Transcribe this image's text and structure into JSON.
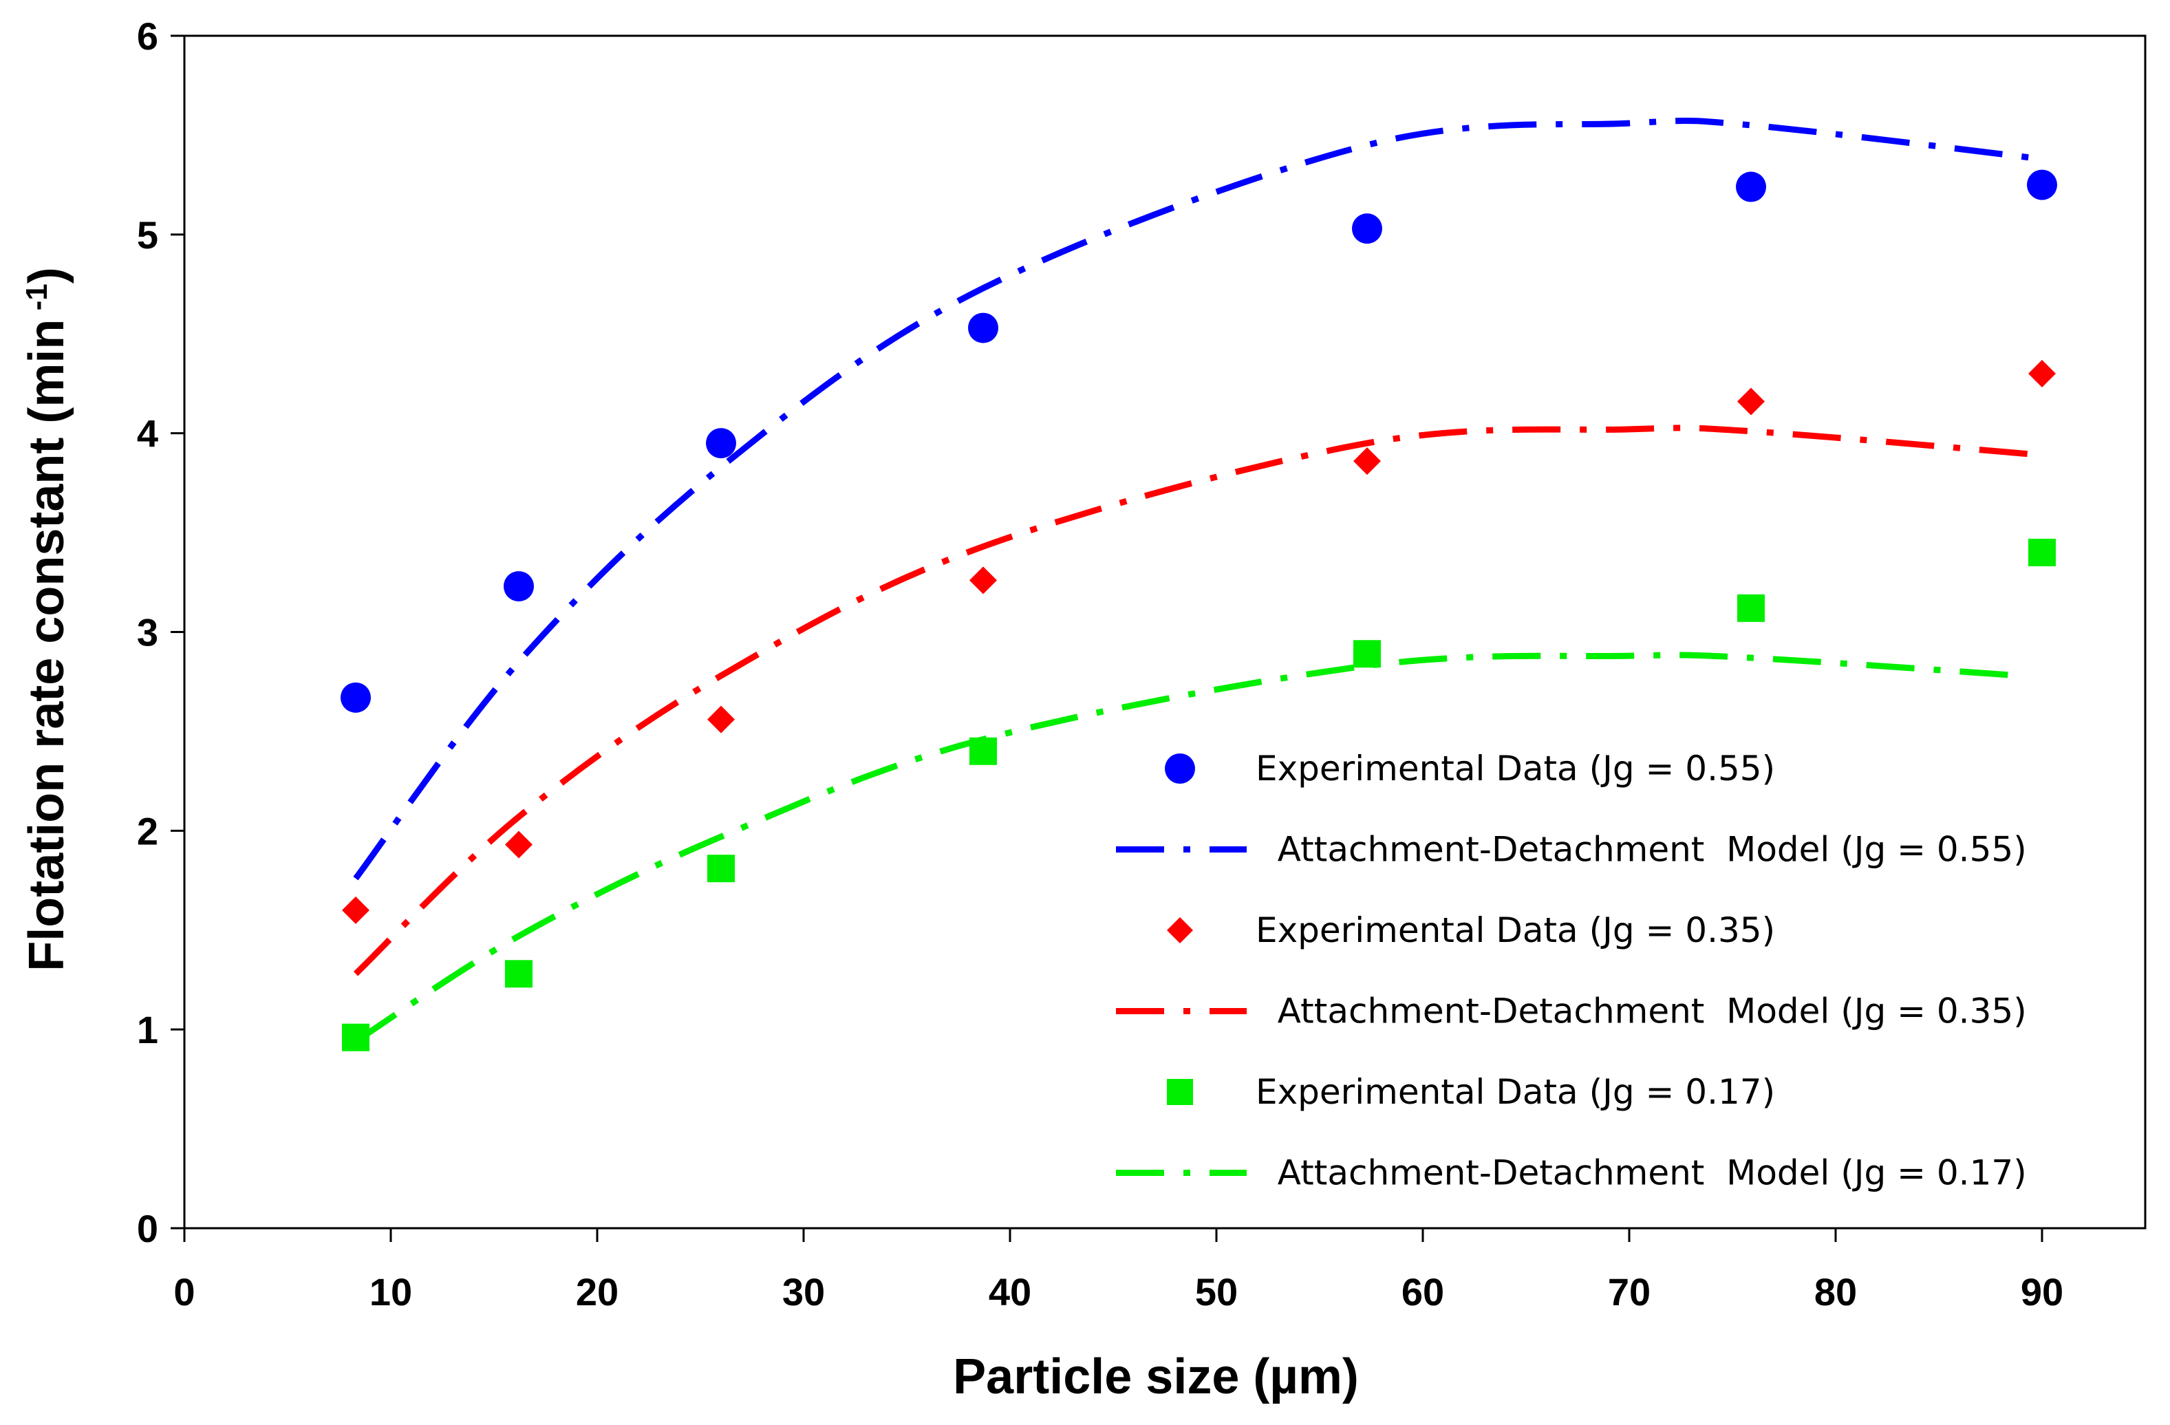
{
  "chart_data": {
    "type": "scatter",
    "title": "",
    "xlabel": "Particle size (µm)",
    "ylabel_main": "Flotation rate constant (min",
    "ylabel_sup": " -1",
    "ylabel_close": ")",
    "xlim": [
      0,
      95
    ],
    "ylim": [
      0,
      6
    ],
    "xticks": [
      0,
      10,
      20,
      30,
      40,
      50,
      60,
      70,
      80,
      90
    ],
    "yticks": [
      0,
      1,
      2,
      3,
      4,
      5,
      6
    ],
    "legend_position": "lower-right",
    "series": [
      {
        "name": "Experimental Data (Jg = 0.55)",
        "kind": "points",
        "marker": "circle",
        "color": "#0000FF",
        "x": [
          8.3,
          16.2,
          26.0,
          38.7,
          57.3,
          75.9,
          90.0
        ],
        "y": [
          2.67,
          3.23,
          3.95,
          4.53,
          5.03,
          5.24,
          5.25
        ]
      },
      {
        "name": "  Attachment-Detachment  Model (Jg = 0.55)",
        "kind": "line",
        "color": "#0000FF",
        "x": [
          8.3,
          16.2,
          26.0,
          38.7,
          57.3,
          70.0,
          75.9,
          90.0
        ],
        "y": [
          1.76,
          2.85,
          3.83,
          4.73,
          5.45,
          5.56,
          5.55,
          5.38
        ]
      },
      {
        "name": "Experimental Data (Jg = 0.35)",
        "kind": "points",
        "marker": "diamond",
        "color": "#FF0000",
        "x": [
          8.3,
          16.2,
          26.0,
          38.7,
          57.3,
          75.9,
          90.0
        ],
        "y": [
          1.6,
          1.93,
          2.56,
          3.26,
          3.86,
          4.16,
          4.3
        ]
      },
      {
        "name": "  Attachment-Detachment  Model (Jg = 0.35)",
        "kind": "line",
        "color": "#FF0000",
        "x": [
          8.3,
          16.2,
          26.0,
          38.7,
          57.3,
          70.0,
          75.9,
          90.0
        ],
        "y": [
          1.28,
          2.07,
          2.78,
          3.43,
          3.95,
          4.02,
          4.01,
          3.89
        ]
      },
      {
        "name": "Experimental Data (Jg = 0.17)",
        "kind": "points",
        "marker": "square",
        "color": "#00EE00",
        "x": [
          8.3,
          16.2,
          26.0,
          38.7,
          57.3,
          75.9,
          90.0
        ],
        "y": [
          0.96,
          1.28,
          1.81,
          2.4,
          2.89,
          3.12,
          3.4
        ]
      },
      {
        "name": "  Attachment-Detachment  Model (Jg = 0.17)",
        "kind": "line",
        "color": "#00EE00",
        "x": [
          8.3,
          16.2,
          26.0,
          38.7,
          57.3,
          70.0,
          75.9,
          89.0
        ],
        "y": [
          0.94,
          1.47,
          1.97,
          2.46,
          2.83,
          2.88,
          2.87,
          2.78
        ]
      }
    ]
  }
}
